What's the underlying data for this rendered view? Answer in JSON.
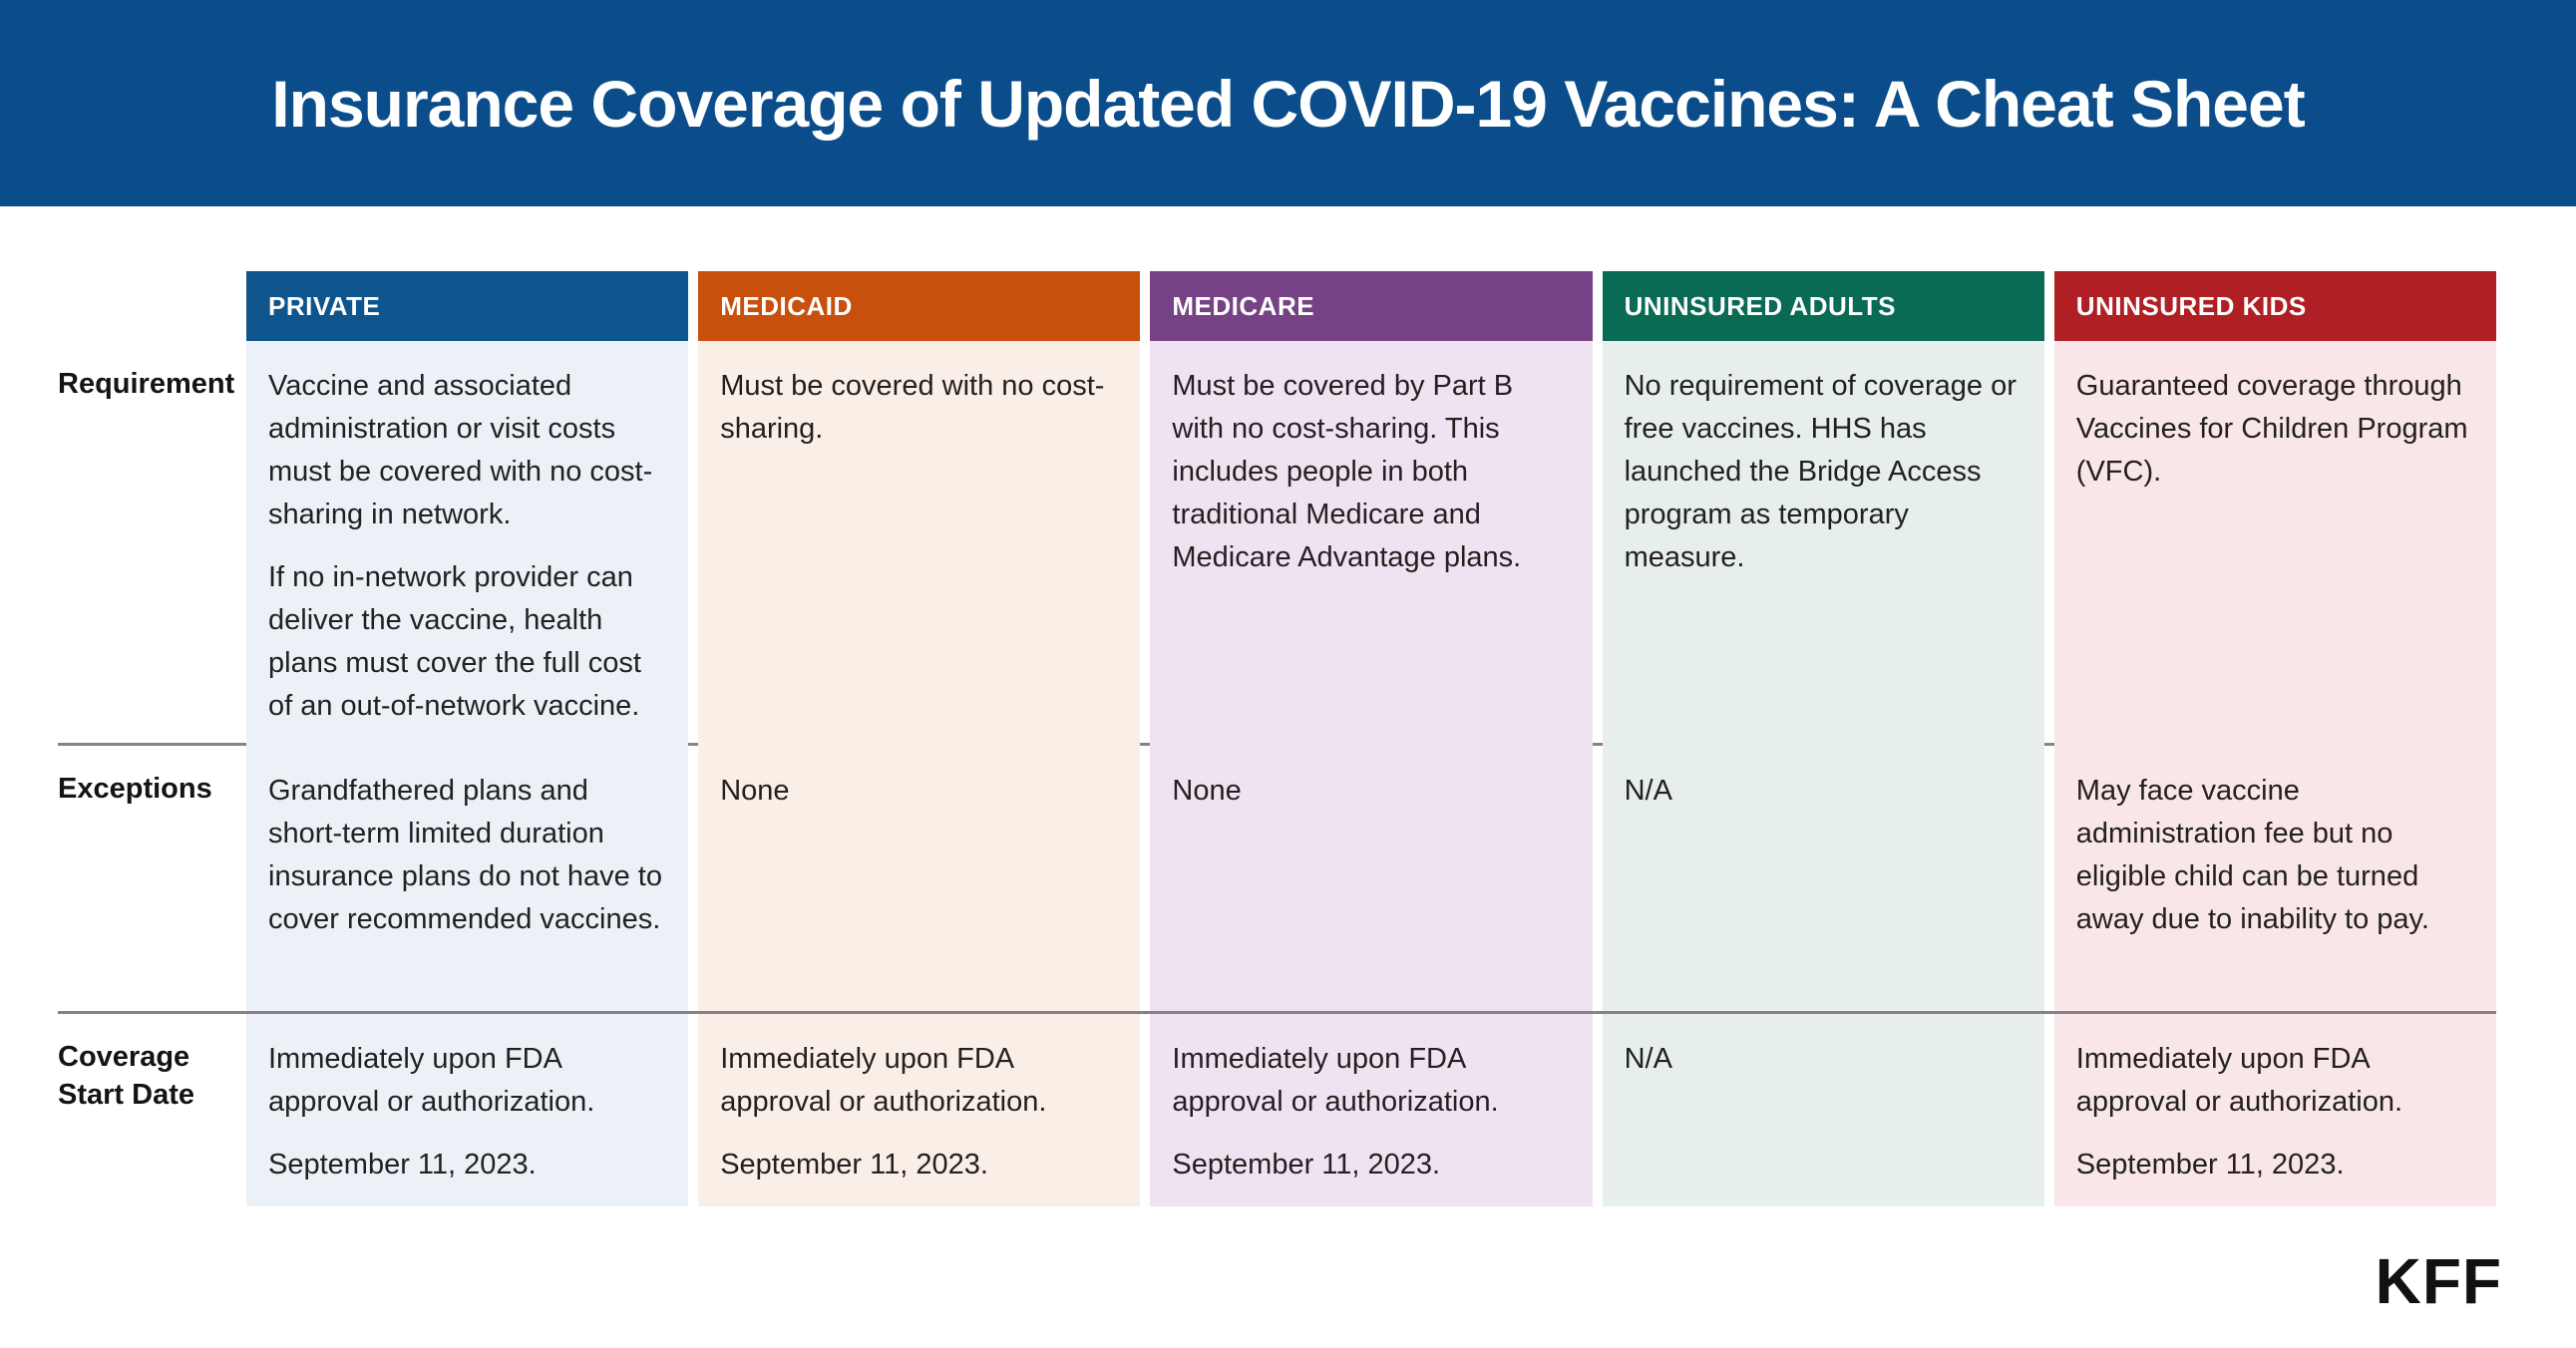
{
  "banner": {
    "title": "Insurance Coverage of Updated COVID-19 Vaccines: A Cheat Sheet",
    "bg": "#0B4D8A"
  },
  "logo": "KFF",
  "colors": {
    "banner_blue": "#0B4D8A",
    "divider_gray": "#8A8184",
    "body_text": "#232020"
  },
  "table": {
    "row_labels": [
      "Requirement",
      "Exceptions",
      "Coverage Start Date"
    ],
    "columns": [
      {
        "label": "PRIVATE",
        "header_bg": "#0E558E",
        "body_bg": "#ECF1F7",
        "requirement": [
          "Vaccine and associated administration or visit costs must be covered with no cost-sharing in network.",
          "If no in-network provider can deliver the vaccine, health plans must cover the full cost of an out-of-network vaccine."
        ],
        "exceptions": [
          "Grandfathered plans and short-term limited duration insurance plans do not have to cover recommended vaccines."
        ],
        "coverage_start": [
          "Immediately upon FDA approval or authorization.",
          "September 11, 2023."
        ]
      },
      {
        "label": "MEDICAID",
        "header_bg": "#C8500C",
        "body_bg": "#FAEFE7",
        "requirement": [
          "Must be covered with no cost-sharing."
        ],
        "exceptions": [
          "None"
        ],
        "coverage_start": [
          "Immediately upon FDA approval or authorization.",
          "September 11, 2023."
        ]
      },
      {
        "label": "MEDICARE",
        "header_bg": "#764285",
        "body_bg": "#F0E3F1",
        "requirement": [
          "Must be covered by Part B with no cost-sharing. This includes people in both traditional Medicare and Medicare Advantage plans."
        ],
        "exceptions": [
          "None"
        ],
        "coverage_start": [
          "Immediately upon FDA approval or authorization.",
          "September 11, 2023."
        ]
      },
      {
        "label": "UNINSURED ADULTS",
        "header_bg": "#0A6B54",
        "body_bg": "#E6EFEC",
        "requirement": [
          "No requirement of coverage or free vaccines. HHS has launched the Bridge Access program as temporary measure."
        ],
        "exceptions": [
          "N/A"
        ],
        "coverage_start": [
          "N/A"
        ]
      },
      {
        "label": "UNINSURED KIDS",
        "header_bg": "#B01F24",
        "body_bg": "#F9E6E8",
        "requirement": [
          "Guaranteed coverage through Vaccines for Children Program (VFC)."
        ],
        "exceptions": [
          "May face vaccine administration fee but no eligible child can be turned away due to inability to pay."
        ],
        "coverage_start": [
          "Immediately upon FDA approval or authorization.",
          "September 11, 2023."
        ]
      }
    ]
  },
  "chart_data": {
    "type": "table",
    "title": "Insurance Coverage of Updated COVID-19 Vaccines: A Cheat Sheet",
    "columns": [
      "PRIVATE",
      "MEDICAID",
      "MEDICARE",
      "UNINSURED ADULTS",
      "UNINSURED KIDS"
    ],
    "rows": [
      {
        "label": "Requirement",
        "values": [
          "Vaccine and associated administration or visit costs must be covered with no cost-sharing in network. If no in-network provider can deliver the vaccine, health plans must cover the full cost of an out-of-network vaccine.",
          "Must be covered with no cost-sharing.",
          "Must be covered by Part B with no cost-sharing. This includes people in both traditional Medicare and Medicare Advantage plans.",
          "No requirement of coverage or free vaccines. HHS has launched the Bridge Access program as temporary measure.",
          "Guaranteed coverage through Vaccines for Children Program (VFC)."
        ]
      },
      {
        "label": "Exceptions",
        "values": [
          "Grandfathered plans and short-term limited duration insurance plans do not have to cover recommended vaccines.",
          "None",
          "None",
          "N/A",
          "May face vaccine administration fee but no eligible child can be turned away due to inability to pay."
        ]
      },
      {
        "label": "Coverage Start Date",
        "values": [
          "Immediately upon FDA approval or authorization. September 11, 2023.",
          "Immediately upon FDA approval or authorization. September 11, 2023.",
          "Immediately upon FDA approval or authorization. September 11, 2023.",
          "N/A",
          "Immediately upon FDA approval or authorization. September 11, 2023."
        ]
      }
    ],
    "source_label": "KFF"
  }
}
